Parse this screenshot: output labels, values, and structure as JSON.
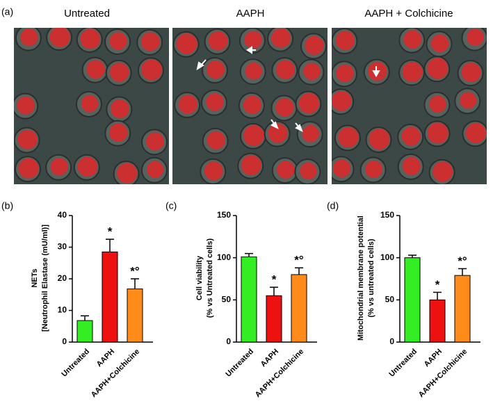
{
  "panel_a": {
    "label": "(a)",
    "images": [
      {
        "title": "Untreated"
      },
      {
        "title": "AAPH"
      },
      {
        "title": "AAPH + Colchicine"
      }
    ]
  },
  "chart_data": [
    {
      "type": "bar",
      "panel_label": "(b)",
      "ylabel": [
        "NETs",
        "[Neutrophil Elastase (mU/ml)]"
      ],
      "categories": [
        "Untreated",
        "AAPH",
        "AAPH+Colchicine"
      ],
      "values": [
        6.8,
        28.5,
        16.8
      ],
      "errors": [
        1.5,
        4,
        3.2
      ],
      "annotations": [
        null,
        "*",
        "*°"
      ],
      "colors": [
        "#33ee22",
        "#ee1111",
        "#ff8c1a"
      ],
      "ylim": [
        0,
        40
      ],
      "yticks": [
        0,
        10,
        20,
        30,
        40
      ]
    },
    {
      "type": "bar",
      "panel_label": "(c)",
      "ylabel": [
        "Cell viability",
        "(% vs Untreated cells)"
      ],
      "categories": [
        "Untreated",
        "AAPH",
        "AAPH+Colchicine"
      ],
      "values": [
        101,
        55,
        80
      ],
      "errors": [
        4,
        10,
        8
      ],
      "annotations": [
        null,
        "*",
        "*°"
      ],
      "colors": [
        "#33ee22",
        "#ee1111",
        "#ff8c1a"
      ],
      "ylim": [
        0,
        150
      ],
      "yticks": [
        0,
        50,
        100,
        150
      ]
    },
    {
      "type": "bar",
      "panel_label": "(d)",
      "ylabel": [
        "Mitochondrial membrane potential",
        "(% vs untreated cells)"
      ],
      "categories": [
        "Untreated",
        "AAPH",
        "AAPH+Colchicine"
      ],
      "values": [
        100,
        50,
        79
      ],
      "errors": [
        3,
        9,
        8
      ],
      "annotations": [
        null,
        "*",
        "*°"
      ],
      "colors": [
        "#33ee22",
        "#ee1111",
        "#ff8c1a"
      ],
      "ylim": [
        0,
        150
      ],
      "yticks": [
        0,
        50,
        100,
        150
      ]
    }
  ]
}
